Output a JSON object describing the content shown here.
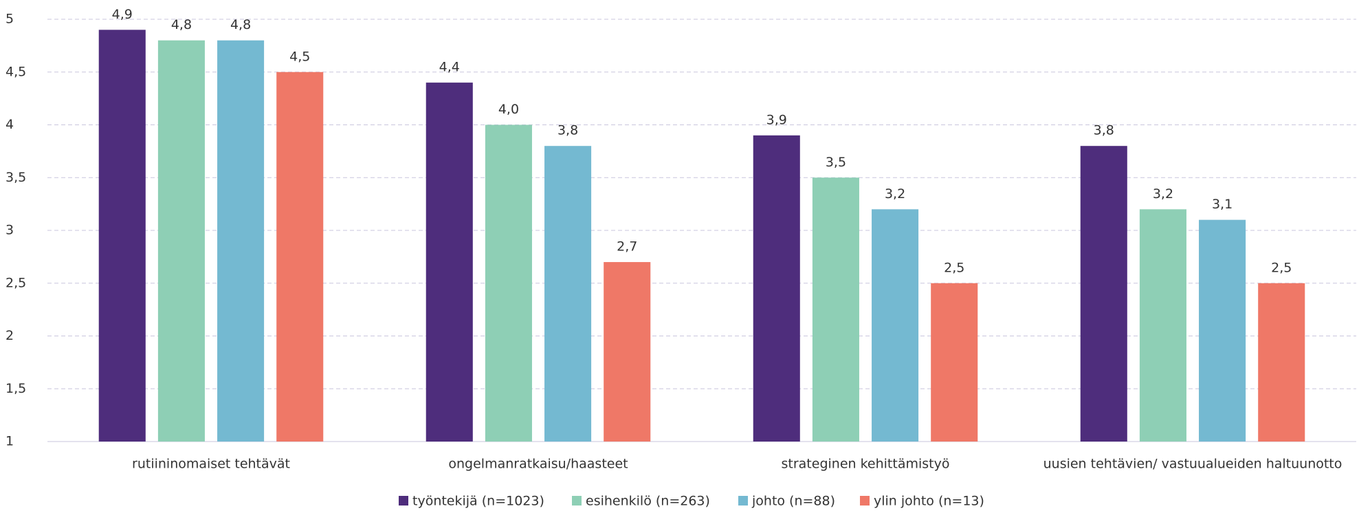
{
  "chart_data": {
    "type": "bar",
    "categories": [
      "rutiininomaiset tehtävät",
      "ongelmanratkaisu/haasteet",
      "strateginen kehittämistyö",
      "uusien tehtävien/ vastuualueiden haltuunotto"
    ],
    "series": [
      {
        "name": "työntekijä (n=1023)",
        "color": "#4e2d7c",
        "values": [
          4.9,
          4.4,
          3.9,
          3.8
        ],
        "value_labels": [
          "4,9",
          "4,4",
          "3,9",
          "3,8"
        ]
      },
      {
        "name": "esihenkilö (n=263)",
        "color": "#8ecfb5",
        "values": [
          4.8,
          4.0,
          3.5,
          3.2
        ],
        "value_labels": [
          "4,8",
          "4,0",
          "3,5",
          "3,2"
        ]
      },
      {
        "name": "johto (n=88)",
        "color": "#74b9d1",
        "values": [
          4.8,
          3.8,
          3.2,
          3.1
        ],
        "value_labels": [
          "4,8",
          "3,8",
          "3,2",
          "3,1"
        ]
      },
      {
        "name": "ylin johto (n=13)",
        "color": "#ef7867",
        "values": [
          4.5,
          2.7,
          2.5,
          2.5
        ],
        "value_labels": [
          "4,5",
          "2,7",
          "2,5",
          "2,5"
        ]
      }
    ],
    "ylim": [
      1,
      5
    ],
    "yticks": [
      1,
      {
        "value": 1.5,
        "label": "1,5"
      },
      2,
      {
        "value": 2.5,
        "label": "2,5"
      },
      3,
      {
        "value": 3.5,
        "label": "3,5"
      },
      4,
      {
        "value": 4.5,
        "label": "4,5"
      },
      5
    ],
    "grid": true,
    "legend": "bottom"
  }
}
